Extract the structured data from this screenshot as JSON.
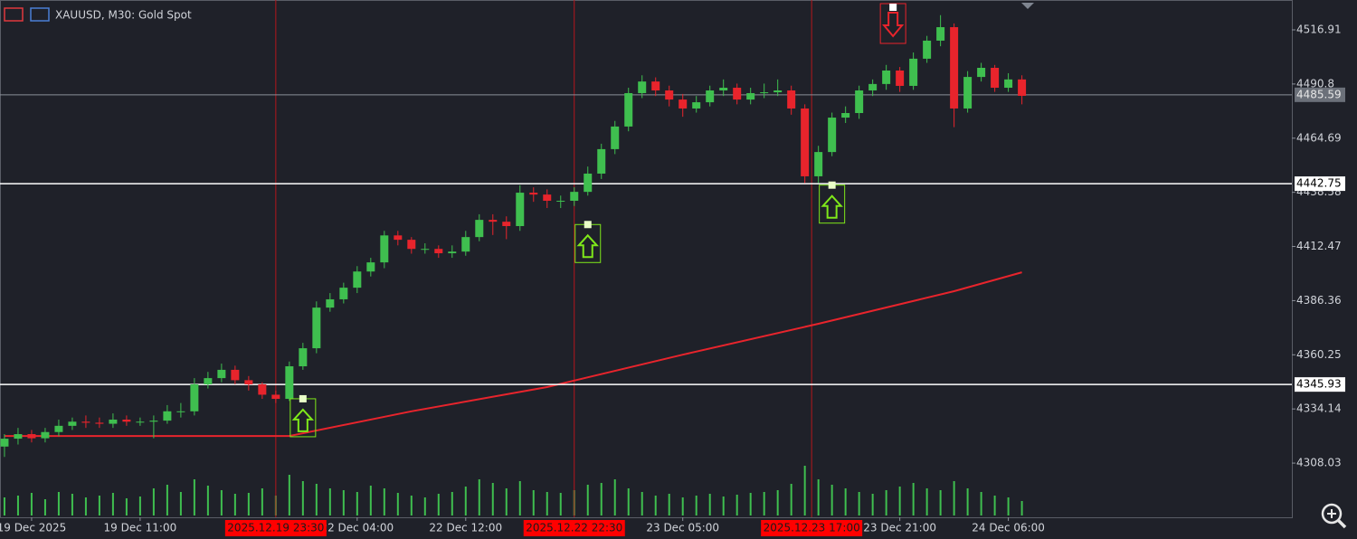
{
  "chart_data": {
    "type": "candlestick",
    "title": "XAUUSD, M30:  Gold Spot",
    "ylim": [
      4281.9,
      4531.3
    ],
    "yticks": [
      4516.91,
      4490.8,
      4464.69,
      4438.58,
      4412.47,
      4386.36,
      4360.25,
      4334.14,
      4308.03
    ],
    "xlim": [
      -0.33,
      94.9
    ],
    "xticks": [
      {
        "value": 2,
        "label": "19 Dec 2025"
      },
      {
        "value": 10,
        "label": "19 Dec 11:00"
      },
      {
        "value": 26,
        "label": "22 Dec 04:00"
      },
      {
        "value": 34,
        "label": "22 Dec 12:00"
      },
      {
        "value": 50,
        "label": "23 Dec 05:00"
      },
      {
        "value": 66,
        "label": "23 Dec 21:00"
      },
      {
        "value": 74,
        "label": "24 Dec 06:00"
      }
    ],
    "up_color": "#3fbf4f",
    "down_color": "#e8242c",
    "candles": [
      [
        4316,
        4322,
        4311,
        4319.8
      ],
      [
        4319.8,
        4325,
        4317,
        4322
      ],
      [
        4322,
        4324,
        4318,
        4320
      ],
      [
        4320,
        4325,
        4318,
        4323
      ],
      [
        4323,
        4329,
        4321,
        4326
      ],
      [
        4326,
        4330,
        4324,
        4328
      ],
      [
        4328,
        4331,
        4325,
        4327.5
      ],
      [
        4327.5,
        4330,
        4325,
        4327
      ],
      [
        4327,
        4332,
        4325,
        4329
      ],
      [
        4329,
        4331,
        4326,
        4328
      ],
      [
        4328,
        4330,
        4326,
        4328
      ],
      [
        4328,
        4331,
        4320,
        4328.5
      ],
      [
        4328.5,
        4336,
        4327,
        4333
      ],
      [
        4333,
        4337,
        4330,
        4333
      ],
      [
        4333,
        4349,
        4331,
        4346
      ],
      [
        4346,
        4352,
        4344,
        4349
      ],
      [
        4349,
        4356,
        4347,
        4353
      ],
      [
        4353,
        4355,
        4346,
        4348
      ],
      [
        4348,
        4350,
        4343,
        4346
      ],
      [
        4346,
        4347,
        4339,
        4341
      ],
      [
        4341,
        4343,
        4337,
        4339
      ],
      [
        4339,
        4357,
        4338,
        4354.7
      ],
      [
        4354.7,
        4366,
        4353,
        4363.4
      ],
      [
        4363.4,
        4386,
        4361,
        4383
      ],
      [
        4383,
        4390,
        4381,
        4387
      ],
      [
        4387,
        4395,
        4385,
        4392.6
      ],
      [
        4392.6,
        4403,
        4390,
        4400.4
      ],
      [
        4400.4,
        4407,
        4398,
        4404.8
      ],
      [
        4404.8,
        4420,
        4402,
        4417.8
      ],
      [
        4417.8,
        4420,
        4413,
        4415.7
      ],
      [
        4415.7,
        4417,
        4409,
        4411.3
      ],
      [
        4411.3,
        4414,
        4409,
        4411.3
      ],
      [
        4411.3,
        4413,
        4407,
        4409.2
      ],
      [
        4409.2,
        4413,
        4407,
        4410
      ],
      [
        4410,
        4420,
        4408,
        4417
      ],
      [
        4417,
        4428,
        4415,
        4425.3
      ],
      [
        4425.3,
        4428,
        4418,
        4424.4
      ],
      [
        4424.4,
        4427,
        4416,
        4422.3
      ],
      [
        4422.3,
        4442,
        4420,
        4438.4
      ],
      [
        4438.4,
        4441,
        4434,
        4437.5
      ],
      [
        4437.5,
        4440,
        4431,
        4434.5
      ],
      [
        4434.5,
        4437,
        4431,
        4434.5
      ],
      [
        4434.5,
        4441,
        4432,
        4438.8
      ],
      [
        4438.8,
        4451,
        4437,
        4447.6
      ],
      [
        4447.6,
        4462,
        4445,
        4459.4
      ],
      [
        4459.4,
        4473,
        4457,
        4470.3
      ],
      [
        4470.3,
        4489,
        4468,
        4486.4
      ],
      [
        4486.4,
        4495,
        4484,
        4492
      ],
      [
        4492,
        4494,
        4485,
        4487.7
      ],
      [
        4487.7,
        4490,
        4480,
        4483.3
      ],
      [
        4483.3,
        4486,
        4475,
        4479
      ],
      [
        4479,
        4485,
        4477,
        4482
      ],
      [
        4482,
        4490,
        4480,
        4487.7
      ],
      [
        4487.7,
        4493,
        4485,
        4489
      ],
      [
        4489,
        4491,
        4481,
        4483.3
      ],
      [
        4483.3,
        4489,
        4481,
        4486.4
      ],
      [
        4486.4,
        4491,
        4484,
        4486.8
      ],
      [
        4486.8,
        4493,
        4485,
        4487.7
      ],
      [
        4487.7,
        4490,
        4476,
        4479
      ],
      [
        4479,
        4481,
        4443,
        4446.3
      ],
      [
        4446.3,
        4461,
        4443,
        4458
      ],
      [
        4458,
        4477,
        4456,
        4474.6
      ],
      [
        4474.6,
        4480,
        4472,
        4476.8
      ],
      [
        4476.8,
        4490,
        4474,
        4487.7
      ],
      [
        4487.7,
        4493,
        4485,
        4490.8
      ],
      [
        4490.8,
        4500,
        4488,
        4497.3
      ],
      [
        4497.3,
        4499,
        4487,
        4489.9
      ],
      [
        4489.9,
        4506,
        4488,
        4503
      ],
      [
        4503,
        4514,
        4501,
        4511.7
      ],
      [
        4511.7,
        4524,
        4509,
        4518.2
      ],
      [
        4518.2,
        4520,
        4470,
        4479
      ],
      [
        4479,
        4497,
        4477,
        4494.2
      ],
      [
        4494.2,
        4501,
        4492,
        4498.6
      ],
      [
        4498.6,
        4500,
        4487,
        4489
      ],
      [
        4489,
        4496,
        4487,
        4493
      ],
      [
        4493,
        4495,
        4481,
        4485.1
      ]
    ],
    "volumes": [
      20,
      22,
      25,
      18,
      26,
      24,
      20,
      22,
      25,
      19,
      21,
      30,
      34,
      26,
      40,
      33,
      28,
      24,
      25,
      30,
      22,
      45,
      38,
      35,
      30,
      28,
      26,
      33,
      30,
      25,
      22,
      20,
      24,
      26,
      32,
      40,
      36,
      30,
      38,
      28,
      26,
      25,
      28,
      34,
      36,
      40,
      30,
      26,
      22,
      24,
      20,
      22,
      24,
      21,
      23,
      25,
      26,
      28,
      35,
      55,
      40,
      34,
      30,
      26,
      24,
      28,
      32,
      36,
      30,
      28,
      38,
      30,
      26,
      22,
      20,
      16
    ],
    "ma": {
      "color": "#e8242c",
      "x": [
        0,
        21,
        30,
        40,
        50,
        60,
        70,
        75
      ],
      "values": [
        4321.1,
        4321.1,
        4333,
        4344.7,
        4360.3,
        4375.2,
        4390.9,
        4400
      ]
    },
    "levels": [
      {
        "value": 4485.59,
        "color": "#8a8f99"
      },
      {
        "value": 4442.75,
        "color": "#ffffff"
      },
      {
        "value": 4345.93,
        "color": "#ffffff"
      }
    ],
    "time_markers": [
      {
        "value": 20,
        "label": "2025.12.19 23:30"
      },
      {
        "value": 42,
        "label": "2025.12.22 22:30"
      },
      {
        "value": 59.5,
        "label": "2025.12.23 17:00"
      }
    ],
    "signals": [
      {
        "index": 22,
        "direction": "up",
        "color": "#7fe81a"
      },
      {
        "index": 43,
        "direction": "up",
        "color": "#7fe81a"
      },
      {
        "index": 61,
        "direction": "up",
        "color": "#7fe81a"
      },
      {
        "index": 65.5,
        "direction": "down",
        "color": "#e8242c"
      }
    ]
  }
}
